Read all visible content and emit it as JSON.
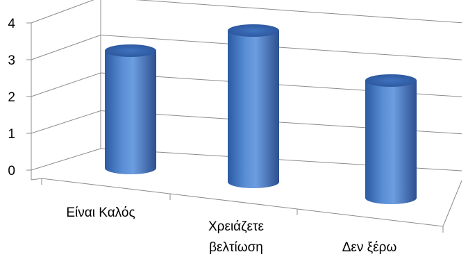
{
  "chart_data": {
    "type": "bar",
    "style": "3d-cylinder",
    "categories": [
      "Είναι Καλός",
      "Χρειάζετε βελτίωση",
      "Δεν ξέρω"
    ],
    "category_lines": [
      [
        "Είναι Καλός"
      ],
      [
        "Χρειάζετε",
        "βελτίωση"
      ],
      [
        "Δεν ξέρω"
      ]
    ],
    "values": [
      3,
      4,
      3
    ],
    "yticks": [
      "0",
      "1",
      "2",
      "3",
      "4"
    ],
    "ylim": [
      0,
      4
    ],
    "grid": true,
    "legend": "none",
    "bar_color": "#4f81bd",
    "bar_top_color": "#2f5fa8"
  }
}
